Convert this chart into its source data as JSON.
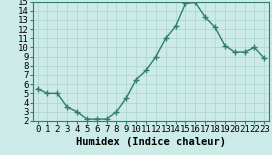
{
  "x": [
    0,
    1,
    2,
    3,
    4,
    5,
    6,
    7,
    8,
    9,
    10,
    11,
    12,
    13,
    14,
    15,
    16,
    17,
    18,
    19,
    20,
    21,
    22,
    23
  ],
  "y": [
    5.5,
    5.0,
    5.0,
    3.5,
    3.0,
    2.2,
    2.2,
    2.2,
    3.0,
    4.5,
    6.5,
    7.5,
    9.0,
    11.0,
    12.3,
    14.8,
    14.9,
    13.3,
    12.2,
    10.2,
    9.5,
    9.5,
    10.0,
    8.8
  ],
  "line_color": "#2e7d6e",
  "marker": "+",
  "marker_size": 4,
  "line_width": 1.0,
  "bg_color": "#cceae7",
  "grid_color": "#b0d8d4",
  "xlabel": "Humidex (Indice chaleur)",
  "ylim": [
    2,
    15
  ],
  "xlim": [
    -0.5,
    23.5
  ],
  "yticks": [
    2,
    3,
    4,
    5,
    6,
    7,
    8,
    9,
    10,
    11,
    12,
    13,
    14,
    15
  ],
  "xticks": [
    0,
    1,
    2,
    3,
    4,
    5,
    6,
    7,
    8,
    9,
    10,
    11,
    12,
    13,
    14,
    15,
    16,
    17,
    18,
    19,
    20,
    21,
    22,
    23
  ],
  "tick_fontsize": 6.5,
  "xlabel_fontsize": 7.5,
  "xlabel_fontweight": "bold"
}
